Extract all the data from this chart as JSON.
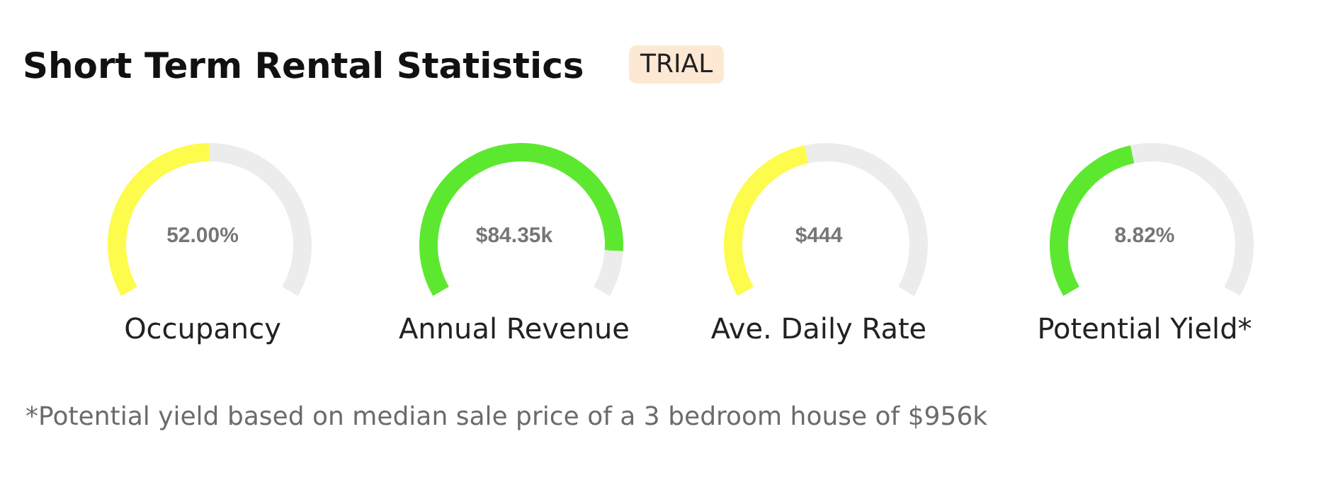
{
  "chart_data": [
    {
      "type": "other",
      "title": "Short Term Rental Statistics",
      "annotations": [
        "TRIAL",
        "*Potential yield based on median sale price of a 3 bedroom house of $956k"
      ]
    },
    {
      "type": "donut",
      "title": "Occupancy",
      "categories": [
        null,
        null
      ],
      "values": [
        50,
        50
      ],
      "colors": [
        "#fdfb4c",
        "#ececec"
      ],
      "annotations": [
        "52.00%"
      ]
    },
    {
      "type": "donut",
      "title": "Annual Revenue",
      "categories": [
        null,
        null
      ],
      "values": [
        89,
        11
      ],
      "colors": [
        "#5de830",
        "#ececec"
      ],
      "annotations": [
        "$84.35k"
      ]
    },
    {
      "type": "donut",
      "title": "Ave. Daily Rate",
      "categories": [
        null,
        null
      ],
      "values": [
        45,
        55
      ],
      "colors": [
        "#fdfb4c",
        "#ececec"
      ],
      "annotations": [
        "$444"
      ]
    },
    {
      "type": "donut",
      "title": "Potential Yield*",
      "categories": [
        null,
        null
      ],
      "values": [
        45,
        55
      ],
      "colors": [
        "#5de830",
        "#ececec"
      ],
      "annotations": [
        "8.82%"
      ]
    }
  ]
}
